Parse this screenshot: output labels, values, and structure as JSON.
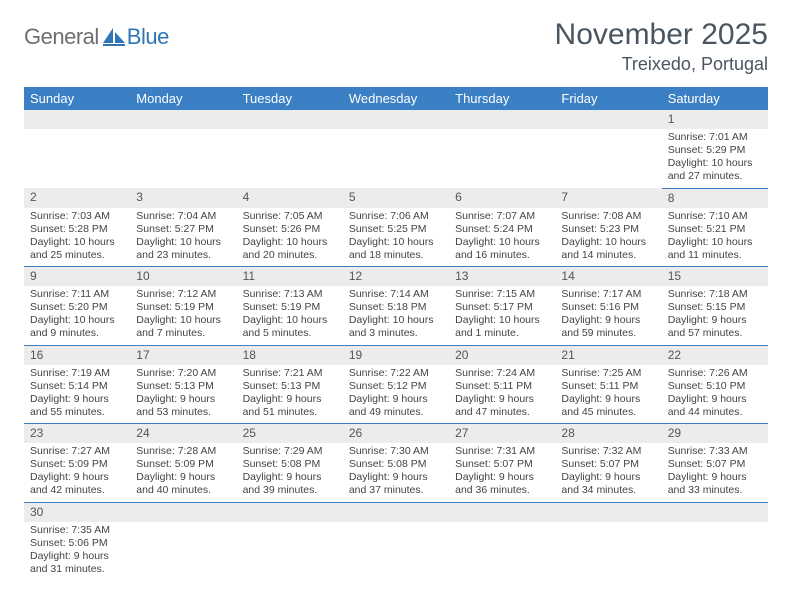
{
  "branding": {
    "logo_part1": "General",
    "logo_part2": "Blue",
    "logo_color_gray": "#6f6f6f",
    "logo_color_blue": "#2f76b6"
  },
  "header": {
    "month_title": "November 2025",
    "location": "Treixedo, Portugal"
  },
  "colors": {
    "header_bg": "#3b7fc4",
    "header_text": "#ffffff",
    "daynum_bg": "#ececec",
    "cell_text": "#444444",
    "rule": "#3b7fc4",
    "title_text": "#4a5560"
  },
  "typography": {
    "title_fontsize": 30,
    "location_fontsize": 18,
    "dayhead_fontsize": 13,
    "daynum_fontsize": 12,
    "cell_fontsize": 10.5
  },
  "weekdays": [
    "Sunday",
    "Monday",
    "Tuesday",
    "Wednesday",
    "Thursday",
    "Friday",
    "Saturday"
  ],
  "weeks": [
    [
      null,
      null,
      null,
      null,
      null,
      null,
      {
        "n": "1",
        "sunrise": "Sunrise: 7:01 AM",
        "sunset": "Sunset: 5:29 PM",
        "daylight": "Daylight: 10 hours and 27 minutes."
      }
    ],
    [
      {
        "n": "2",
        "sunrise": "Sunrise: 7:03 AM",
        "sunset": "Sunset: 5:28 PM",
        "daylight": "Daylight: 10 hours and 25 minutes."
      },
      {
        "n": "3",
        "sunrise": "Sunrise: 7:04 AM",
        "sunset": "Sunset: 5:27 PM",
        "daylight": "Daylight: 10 hours and 23 minutes."
      },
      {
        "n": "4",
        "sunrise": "Sunrise: 7:05 AM",
        "sunset": "Sunset: 5:26 PM",
        "daylight": "Daylight: 10 hours and 20 minutes."
      },
      {
        "n": "5",
        "sunrise": "Sunrise: 7:06 AM",
        "sunset": "Sunset: 5:25 PM",
        "daylight": "Daylight: 10 hours and 18 minutes."
      },
      {
        "n": "6",
        "sunrise": "Sunrise: 7:07 AM",
        "sunset": "Sunset: 5:24 PM",
        "daylight": "Daylight: 10 hours and 16 minutes."
      },
      {
        "n": "7",
        "sunrise": "Sunrise: 7:08 AM",
        "sunset": "Sunset: 5:23 PM",
        "daylight": "Daylight: 10 hours and 14 minutes."
      },
      {
        "n": "8",
        "sunrise": "Sunrise: 7:10 AM",
        "sunset": "Sunset: 5:21 PM",
        "daylight": "Daylight: 10 hours and 11 minutes."
      }
    ],
    [
      {
        "n": "9",
        "sunrise": "Sunrise: 7:11 AM",
        "sunset": "Sunset: 5:20 PM",
        "daylight": "Daylight: 10 hours and 9 minutes."
      },
      {
        "n": "10",
        "sunrise": "Sunrise: 7:12 AM",
        "sunset": "Sunset: 5:19 PM",
        "daylight": "Daylight: 10 hours and 7 minutes."
      },
      {
        "n": "11",
        "sunrise": "Sunrise: 7:13 AM",
        "sunset": "Sunset: 5:19 PM",
        "daylight": "Daylight: 10 hours and 5 minutes."
      },
      {
        "n": "12",
        "sunrise": "Sunrise: 7:14 AM",
        "sunset": "Sunset: 5:18 PM",
        "daylight": "Daylight: 10 hours and 3 minutes."
      },
      {
        "n": "13",
        "sunrise": "Sunrise: 7:15 AM",
        "sunset": "Sunset: 5:17 PM",
        "daylight": "Daylight: 10 hours and 1 minute."
      },
      {
        "n": "14",
        "sunrise": "Sunrise: 7:17 AM",
        "sunset": "Sunset: 5:16 PM",
        "daylight": "Daylight: 9 hours and 59 minutes."
      },
      {
        "n": "15",
        "sunrise": "Sunrise: 7:18 AM",
        "sunset": "Sunset: 5:15 PM",
        "daylight": "Daylight: 9 hours and 57 minutes."
      }
    ],
    [
      {
        "n": "16",
        "sunrise": "Sunrise: 7:19 AM",
        "sunset": "Sunset: 5:14 PM",
        "daylight": "Daylight: 9 hours and 55 minutes."
      },
      {
        "n": "17",
        "sunrise": "Sunrise: 7:20 AM",
        "sunset": "Sunset: 5:13 PM",
        "daylight": "Daylight: 9 hours and 53 minutes."
      },
      {
        "n": "18",
        "sunrise": "Sunrise: 7:21 AM",
        "sunset": "Sunset: 5:13 PM",
        "daylight": "Daylight: 9 hours and 51 minutes."
      },
      {
        "n": "19",
        "sunrise": "Sunrise: 7:22 AM",
        "sunset": "Sunset: 5:12 PM",
        "daylight": "Daylight: 9 hours and 49 minutes."
      },
      {
        "n": "20",
        "sunrise": "Sunrise: 7:24 AM",
        "sunset": "Sunset: 5:11 PM",
        "daylight": "Daylight: 9 hours and 47 minutes."
      },
      {
        "n": "21",
        "sunrise": "Sunrise: 7:25 AM",
        "sunset": "Sunset: 5:11 PM",
        "daylight": "Daylight: 9 hours and 45 minutes."
      },
      {
        "n": "22",
        "sunrise": "Sunrise: 7:26 AM",
        "sunset": "Sunset: 5:10 PM",
        "daylight": "Daylight: 9 hours and 44 minutes."
      }
    ],
    [
      {
        "n": "23",
        "sunrise": "Sunrise: 7:27 AM",
        "sunset": "Sunset: 5:09 PM",
        "daylight": "Daylight: 9 hours and 42 minutes."
      },
      {
        "n": "24",
        "sunrise": "Sunrise: 7:28 AM",
        "sunset": "Sunset: 5:09 PM",
        "daylight": "Daylight: 9 hours and 40 minutes."
      },
      {
        "n": "25",
        "sunrise": "Sunrise: 7:29 AM",
        "sunset": "Sunset: 5:08 PM",
        "daylight": "Daylight: 9 hours and 39 minutes."
      },
      {
        "n": "26",
        "sunrise": "Sunrise: 7:30 AM",
        "sunset": "Sunset: 5:08 PM",
        "daylight": "Daylight: 9 hours and 37 minutes."
      },
      {
        "n": "27",
        "sunrise": "Sunrise: 7:31 AM",
        "sunset": "Sunset: 5:07 PM",
        "daylight": "Daylight: 9 hours and 36 minutes."
      },
      {
        "n": "28",
        "sunrise": "Sunrise: 7:32 AM",
        "sunset": "Sunset: 5:07 PM",
        "daylight": "Daylight: 9 hours and 34 minutes."
      },
      {
        "n": "29",
        "sunrise": "Sunrise: 7:33 AM",
        "sunset": "Sunset: 5:07 PM",
        "daylight": "Daylight: 9 hours and 33 minutes."
      }
    ],
    [
      {
        "n": "30",
        "sunrise": "Sunrise: 7:35 AM",
        "sunset": "Sunset: 5:06 PM",
        "daylight": "Daylight: 9 hours and 31 minutes."
      },
      null,
      null,
      null,
      null,
      null,
      null
    ]
  ]
}
